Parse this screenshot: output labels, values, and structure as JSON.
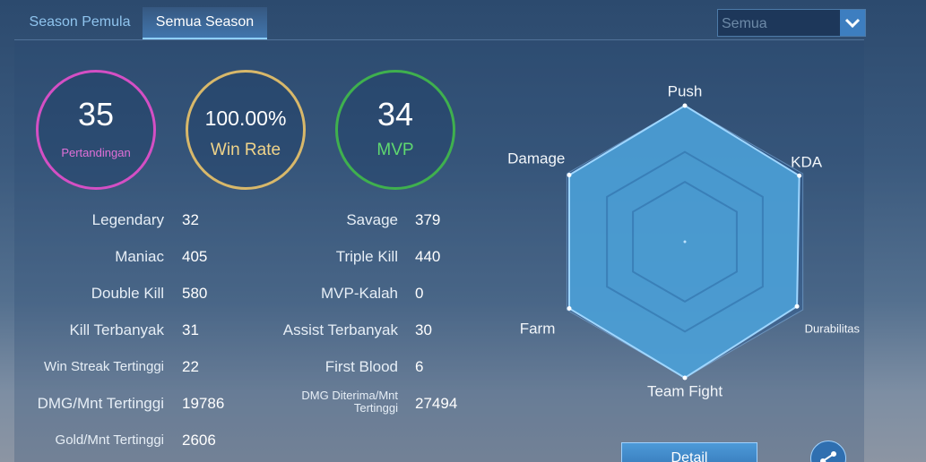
{
  "tabs": [
    "Season Pemula",
    "Semua Season"
  ],
  "dropdown": "Semua",
  "summary": [
    {
      "value": 35,
      "label": "Pertandingan"
    },
    {
      "value": "100.00%",
      "label": "Win Rate"
    },
    {
      "value": 34,
      "label": "MVP"
    }
  ],
  "stats": {
    "left": [
      [
        "Legendary",
        32
      ],
      [
        "Maniac",
        405
      ],
      [
        "Double Kill",
        580
      ],
      [
        "Kill Terbanyak",
        31
      ],
      [
        "Win Streak Tertinggi",
        22
      ],
      [
        "DMG/Mnt Tertinggi",
        19786
      ],
      [
        "Gold/Mnt Tertinggi",
        2606
      ]
    ],
    "right": [
      [
        "Savage",
        379
      ],
      [
        "Triple Kill",
        440
      ],
      [
        "MVP-Kalah",
        0
      ],
      [
        "Assist Terbanyak",
        30
      ],
      [
        "First Blood",
        6
      ],
      [
        "DMG Diterima/Mnt Tertinggi",
        27494
      ]
    ]
  },
  "radar": {
    "axes": [
      "Push",
      "KDA",
      "Durabilitas",
      "Team Fight",
      "Farm",
      "Damage"
    ],
    "values": [
      100,
      97,
      95,
      100,
      98,
      98
    ],
    "rlim": [
      0,
      100
    ]
  },
  "detail_button": "Detail"
}
